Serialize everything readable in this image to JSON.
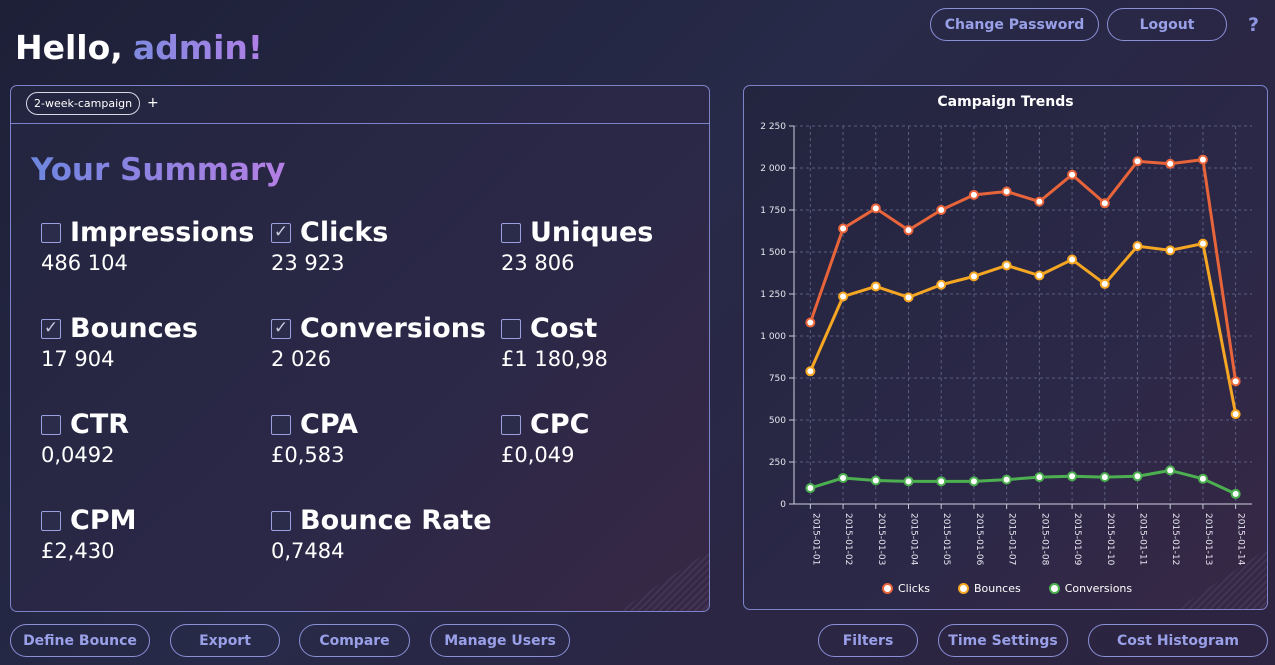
{
  "header": {
    "greeting": "Hello,",
    "username": "admin!",
    "change_password": "Change Password",
    "logout": "Logout",
    "help": "?"
  },
  "tabs": [
    {
      "label": "2-week-campaign"
    }
  ],
  "tab_add": "+",
  "summary": {
    "title": "Your Summary",
    "metrics": [
      {
        "label": "Impressions",
        "value": "486 104",
        "checked": false
      },
      {
        "label": "Clicks",
        "value": "23 923",
        "checked": true
      },
      {
        "label": "Uniques",
        "value": "23 806",
        "checked": false
      },
      {
        "label": "Bounces",
        "value": "17 904",
        "checked": true
      },
      {
        "label": "Conversions",
        "value": "2 026",
        "checked": true
      },
      {
        "label": "Cost",
        "value": "£1 180,98",
        "checked": false
      },
      {
        "label": "CTR",
        "value": "0,0492",
        "checked": false
      },
      {
        "label": "CPA",
        "value": "£0,583",
        "checked": false
      },
      {
        "label": "CPC",
        "value": "£0,049",
        "checked": false
      },
      {
        "label": "CPM",
        "value": "£2,430",
        "checked": false
      },
      {
        "label": "Bounce Rate",
        "value": "0,7484",
        "checked": false
      }
    ]
  },
  "footer": {
    "define_bounce": "Define Bounce",
    "export": "Export",
    "compare": "Compare",
    "manage_users": "Manage Users",
    "filters": "Filters",
    "time_settings": "Time Settings",
    "cost_histogram": "Cost Histogram"
  },
  "chart_data": {
    "type": "line",
    "title": "Campaign Trends",
    "x": [
      "2015-01-01",
      "2015-01-02",
      "2015-01-03",
      "2015-01-04",
      "2015-01-05",
      "2015-01-06",
      "2015-01-07",
      "2015-01-08",
      "2015-01-09",
      "2015-01-10",
      "2015-01-11",
      "2015-01-12",
      "2015-01-13",
      "2015-01-14"
    ],
    "y_ticks": [
      "0",
      "250",
      "500",
      "750",
      "1 000",
      "1 250",
      "1 500",
      "1 750",
      "2 000",
      "2 250"
    ],
    "ylim": [
      0,
      2250
    ],
    "grid": true,
    "legend_position": "bottom",
    "series": [
      {
        "name": "Clicks",
        "color": "#e8643a",
        "values": [
          1080,
          1640,
          1760,
          1630,
          1750,
          1840,
          1860,
          1800,
          1960,
          1790,
          2040,
          2025,
          2050,
          730
        ]
      },
      {
        "name": "Bounces",
        "color": "#f5a623",
        "values": [
          790,
          1235,
          1295,
          1230,
          1305,
          1355,
          1420,
          1360,
          1455,
          1310,
          1535,
          1510,
          1550,
          535
        ]
      },
      {
        "name": "Conversions",
        "color": "#4caf50",
        "values": [
          95,
          155,
          140,
          135,
          135,
          135,
          145,
          160,
          165,
          160,
          165,
          200,
          150,
          60
        ]
      }
    ]
  }
}
